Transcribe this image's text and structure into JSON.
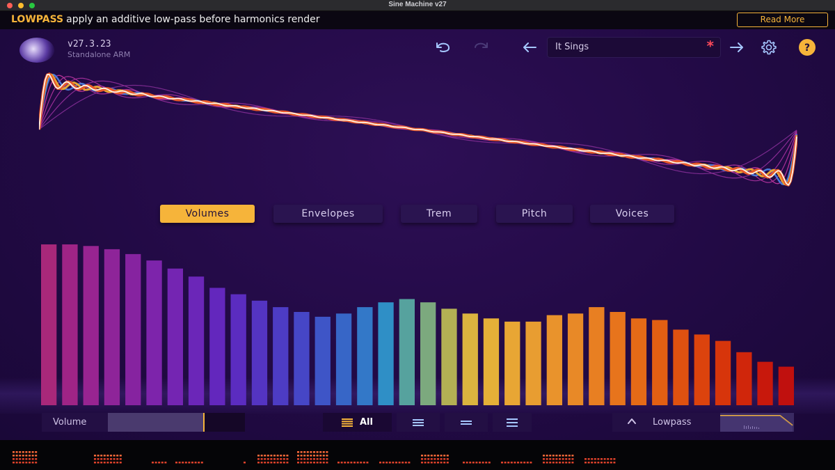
{
  "window": {
    "title": "Sine Machine v27"
  },
  "banner": {
    "keyword": "LOWPASS",
    "message": "apply an additive low-pass before harmonics render",
    "button_label": "Read More"
  },
  "header": {
    "version": "v27.3.23",
    "build": "Standalone ARM",
    "preset_name": "It Sings",
    "modified_marker": "*"
  },
  "icons": {
    "undo": "undo-icon",
    "redo": "redo-icon",
    "prev": "arrow-left-icon",
    "next": "arrow-right-icon",
    "settings": "gear-icon",
    "help": "help-icon",
    "help_glyph": "?"
  },
  "tabs": [
    {
      "label": "Volumes",
      "active": true
    },
    {
      "label": "Envelopes",
      "active": false
    },
    {
      "label": "Trem",
      "active": false
    },
    {
      "label": "Pitch",
      "active": false
    },
    {
      "label": "Voices",
      "active": false
    }
  ],
  "harmonics": {
    "levels": [
      1.0,
      1.0,
      0.99,
      0.97,
      0.94,
      0.9,
      0.85,
      0.8,
      0.73,
      0.69,
      0.65,
      0.61,
      0.58,
      0.55,
      0.57,
      0.61,
      0.64,
      0.66,
      0.64,
      0.6,
      0.57,
      0.54,
      0.52,
      0.52,
      0.56,
      0.57,
      0.61,
      0.58,
      0.54,
      0.53,
      0.47,
      0.44,
      0.4,
      0.33,
      0.27,
      0.24
    ],
    "colors": [
      "#a8287a",
      "#9f2486",
      "#982491",
      "#8e2499",
      "#8623a0",
      "#7d24ab",
      "#7425b2",
      "#6b26b8",
      "#6327bd",
      "#5b2cc0",
      "#5434c2",
      "#4d3cc4",
      "#4646c6",
      "#3e55c7",
      "#3766c7",
      "#3378c8",
      "#2f8fc6",
      "#56a29e",
      "#7ca97e",
      "#b3b054",
      "#dbb43f",
      "#e5b038",
      "#e8a634",
      "#e89d31",
      "#e9932c",
      "#e88927",
      "#e87f22",
      "#e7741c",
      "#e56a17",
      "#e25f13",
      "#df5110",
      "#dc430d",
      "#d7350b",
      "#d0260b",
      "#c8180c",
      "#c0100e"
    ]
  },
  "controls": {
    "volume_label": "Volume",
    "volume_level": 0.7,
    "view_all_label": "All",
    "lowpass_label": "Lowpass"
  },
  "colors": {
    "accent": "#f6b43a",
    "background": "#220a45",
    "modified": "#ff4a5a"
  }
}
